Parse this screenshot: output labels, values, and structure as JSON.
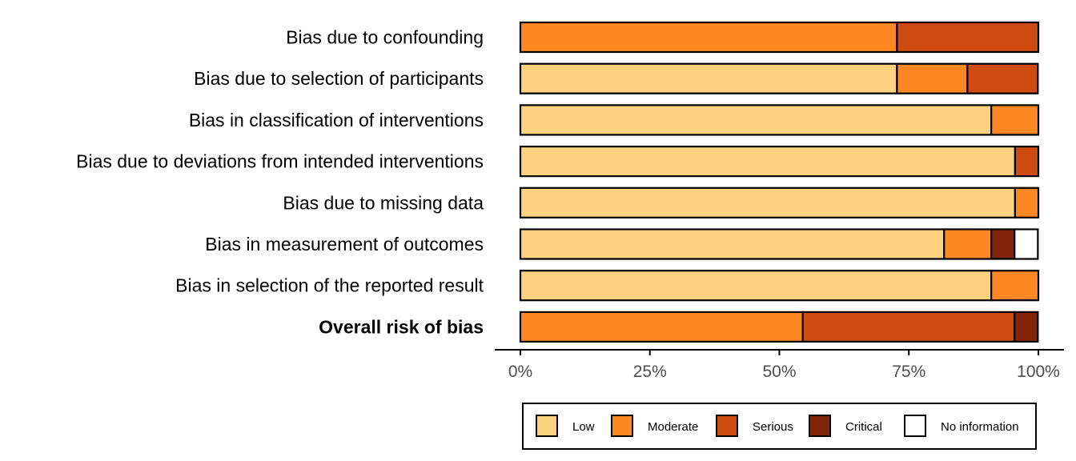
{
  "chart_data": {
    "type": "bar",
    "orientation": "horizontal",
    "stacked": true,
    "categories": [
      "Bias due to confounding",
      "Bias due to selection of participants",
      "Bias in classification of interventions",
      "Bias due to deviations from intended interventions",
      "Bias due to missing data",
      "Bias in measurement of outcomes",
      "Bias in selection of the reported result",
      "Overall risk of bias"
    ],
    "bold_category": "Overall risk of bias",
    "series": [
      {
        "name": "Low",
        "color": "#FDD381",
        "values": [
          0,
          72.7,
          90.9,
          95.5,
          95.5,
          81.8,
          90.9,
          0
        ]
      },
      {
        "name": "Moderate",
        "color": "#FD8823",
        "values": [
          72.7,
          13.6,
          9.1,
          0,
          4.5,
          9.1,
          9.1,
          54.5
        ]
      },
      {
        "name": "Serious",
        "color": "#CD4A11",
        "values": [
          27.3,
          13.6,
          0,
          4.5,
          0,
          0,
          0,
          40.9
        ]
      },
      {
        "name": "Critical",
        "color": "#80250A",
        "values": [
          0,
          0,
          0,
          0,
          0,
          4.5,
          0,
          4.5
        ]
      },
      {
        "name": "No information",
        "color": "#FFFFFF",
        "values": [
          0,
          0,
          0,
          0,
          0,
          4.5,
          0,
          0
        ]
      }
    ],
    "x_ticks": [
      "0%",
      "25%",
      "50%",
      "75%",
      "100%"
    ],
    "xlim": [
      0,
      100
    ],
    "legend_position": "bottom",
    "grid": false
  }
}
